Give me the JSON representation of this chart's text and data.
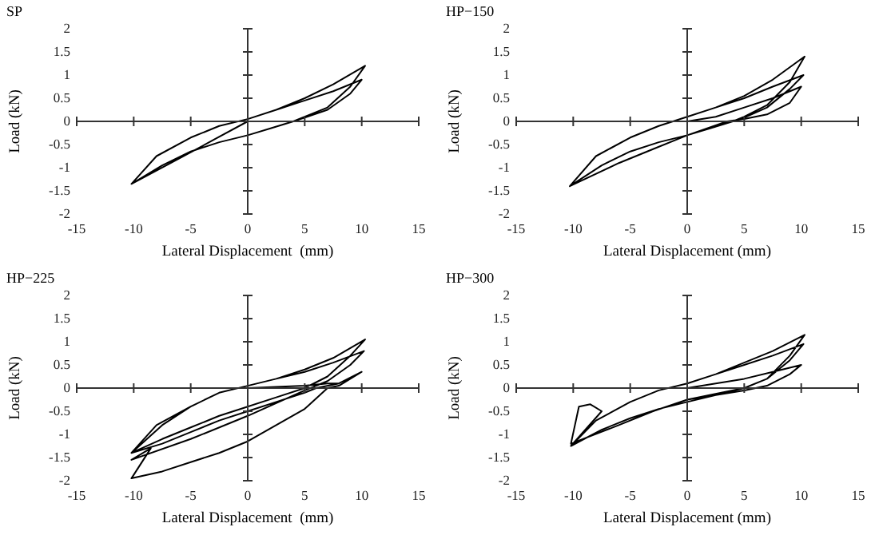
{
  "chart_data": [
    {
      "type": "line",
      "title": "SP",
      "xlabel": "Lateral Displacement  (mm)",
      "ylabel": "Load (kN)",
      "xlim": [
        -15,
        15
      ],
      "xticks": [
        -15,
        -10,
        -5,
        0,
        5,
        10,
        15
      ],
      "ylim": [
        -2,
        2
      ],
      "yticks": [
        -2,
        -1.5,
        -1,
        -0.5,
        0,
        0.5,
        1,
        1.5,
        2
      ],
      "marker": "none",
      "line_style": "solid",
      "series": [
        {
          "color": "#000000",
          "x": [
            0,
            -3,
            -6,
            -10.2,
            -8,
            -5,
            -2.5,
            0,
            2.5,
            5,
            7.5,
            10.3,
            9,
            7,
            5,
            4,
            2,
            0,
            -2.5,
            -5,
            -7.5,
            -10.2,
            -8,
            -5,
            -2.5,
            0,
            2.5,
            5,
            7.5,
            10,
            9,
            7,
            5,
            4,
            2,
            0
          ],
          "values": [
            0,
            -0.4,
            -0.8,
            -1.35,
            -0.75,
            -0.35,
            -0.1,
            0.05,
            0.25,
            0.5,
            0.8,
            1.2,
            0.75,
            0.3,
            0.1,
            0,
            -0.15,
            -0.3,
            -0.45,
            -0.65,
            -0.95,
            -1.35,
            -0.75,
            -0.35,
            -0.1,
            0.05,
            0.25,
            0.45,
            0.65,
            0.9,
            0.6,
            0.25,
            0.08,
            0,
            -0.15,
            -0.3
          ]
        }
      ]
    },
    {
      "type": "line",
      "title": "HP−150",
      "xlabel": "Lateral Displacement (mm)",
      "ylabel": "Load (kN)",
      "xlim": [
        -15,
        15
      ],
      "xticks": [
        -15,
        -10,
        -5,
        0,
        5,
        10,
        15
      ],
      "ylim": [
        -2,
        2
      ],
      "yticks": [
        -2,
        -1.5,
        -1,
        -0.5,
        0,
        0.5,
        1,
        1.5,
        2
      ],
      "marker": "none",
      "line_style": "solid",
      "series": [
        {
          "color": "#000000",
          "x": [
            0,
            2.5,
            5,
            7.5,
            10,
            9,
            7,
            5,
            3.5,
            0,
            -3,
            -6,
            -10.3,
            -8,
            -5,
            -2.5,
            0,
            2.5,
            5,
            7.5,
            10.3,
            9,
            7,
            5,
            4,
            2,
            0,
            -2.5,
            -5,
            -7.5,
            -10.3,
            -8,
            -5,
            -2.5,
            0,
            2.5,
            5,
            7.5,
            10.2,
            9,
            7,
            5,
            4,
            0
          ],
          "values": [
            0,
            0.1,
            0.3,
            0.5,
            0.75,
            0.4,
            0.15,
            0.05,
            0,
            -0.3,
            -0.6,
            -0.9,
            -1.4,
            -0.75,
            -0.35,
            -0.1,
            0.1,
            0.3,
            0.55,
            0.9,
            1.4,
            0.85,
            0.35,
            0.1,
            0,
            -0.15,
            -0.3,
            -0.45,
            -0.65,
            -0.95,
            -1.4,
            -0.75,
            -0.35,
            -0.1,
            0.1,
            0.3,
            0.5,
            0.75,
            1.0,
            0.7,
            0.3,
            0.08,
            0,
            -0.3
          ]
        }
      ]
    },
    {
      "type": "line",
      "title": "HP−225",
      "xlabel": "Lateral Displacement  (mm)",
      "ylabel": "Load (kN)",
      "xlim": [
        -15,
        15
      ],
      "xticks": [
        -15,
        -10,
        -5,
        0,
        5,
        10,
        15
      ],
      "ylim": [
        -2,
        2
      ],
      "yticks": [
        -2,
        -1.5,
        -1,
        -0.5,
        0,
        0.5,
        1,
        1.5,
        2
      ],
      "marker": "none",
      "line_style": "solid",
      "series": [
        {
          "color": "#000000",
          "x": [
            0,
            5,
            7,
            8,
            10,
            8,
            6,
            5,
            2.5,
            0,
            -2.5,
            -5,
            -7.5,
            -10.2,
            -7.5,
            -5,
            -2.5,
            0,
            2.5,
            5,
            7.5,
            10.3,
            9,
            7,
            5,
            2.5,
            0,
            -2.5,
            -5,
            -7.5,
            -10.2,
            -8,
            -5,
            -2.5,
            0,
            2.5,
            5,
            7.5,
            10.2,
            9,
            7,
            5,
            0,
            -5,
            -10.2,
            -8.5,
            -10.2,
            -7.5,
            -5,
            -2.5,
            0,
            2.5,
            5,
            7,
            8,
            10
          ],
          "values": [
            0,
            0.05,
            0.1,
            0.1,
            0.35,
            0.1,
            0,
            -0.1,
            -0.3,
            -0.5,
            -0.7,
            -0.95,
            -1.2,
            -1.4,
            -0.8,
            -0.4,
            -0.1,
            0.05,
            0.2,
            0.4,
            0.65,
            1.05,
            0.7,
            0.25,
            0,
            -0.2,
            -0.4,
            -0.6,
            -0.85,
            -1.1,
            -1.4,
            -0.8,
            -0.4,
            -0.1,
            0.05,
            0.2,
            0.35,
            0.55,
            0.8,
            0.5,
            0.15,
            -0.05,
            -0.6,
            -1.1,
            -1.55,
            -1.3,
            -1.95,
            -1.8,
            -1.6,
            -1.4,
            -1.15,
            -0.8,
            -0.45,
            0,
            0.05,
            0.35
          ]
        }
      ]
    },
    {
      "type": "line",
      "title": "HP−300",
      "xlabel": "Lateral Displacement (mm)",
      "ylabel": "Load (kN)",
      "xlim": [
        -15,
        15
      ],
      "xticks": [
        -15,
        -10,
        -5,
        0,
        5,
        10,
        15
      ],
      "ylim": [
        -2,
        2
      ],
      "yticks": [
        -2,
        -1.5,
        -1,
        -0.5,
        0,
        0.5,
        1,
        1.5,
        2
      ],
      "marker": "none",
      "line_style": "solid",
      "series": [
        {
          "color": "#000000",
          "x": [
            0,
            2.5,
            5,
            7.5,
            10,
            9,
            7,
            5,
            2.5,
            0,
            -3,
            -6,
            -10.2,
            -9.5,
            -8.5,
            -7.5,
            -10.2,
            -8,
            -5,
            -2.5,
            0,
            2.5,
            5,
            7.5,
            10.3,
            9,
            7,
            5,
            2.5,
            0,
            -2.5,
            -5,
            -7.5,
            -10.2,
            -8,
            -5,
            -2.5,
            0,
            2.5,
            5,
            7.5,
            10.2,
            9,
            7,
            5,
            3,
            0
          ],
          "values": [
            0,
            0.1,
            0.2,
            0.35,
            0.5,
            0.3,
            0.05,
            -0.05,
            -0.15,
            -0.25,
            -0.5,
            -0.8,
            -1.2,
            -0.4,
            -0.35,
            -0.5,
            -1.25,
            -0.7,
            -0.3,
            -0.05,
            0.1,
            0.3,
            0.55,
            0.8,
            1.15,
            0.7,
            0.2,
            0,
            -0.15,
            -0.3,
            -0.45,
            -0.65,
            -0.9,
            -1.25,
            -0.7,
            -0.3,
            -0.05,
            0.1,
            0.3,
            0.5,
            0.7,
            0.95,
            0.6,
            0.2,
            0,
            -0.1,
            -0.25
          ]
        }
      ]
    }
  ]
}
